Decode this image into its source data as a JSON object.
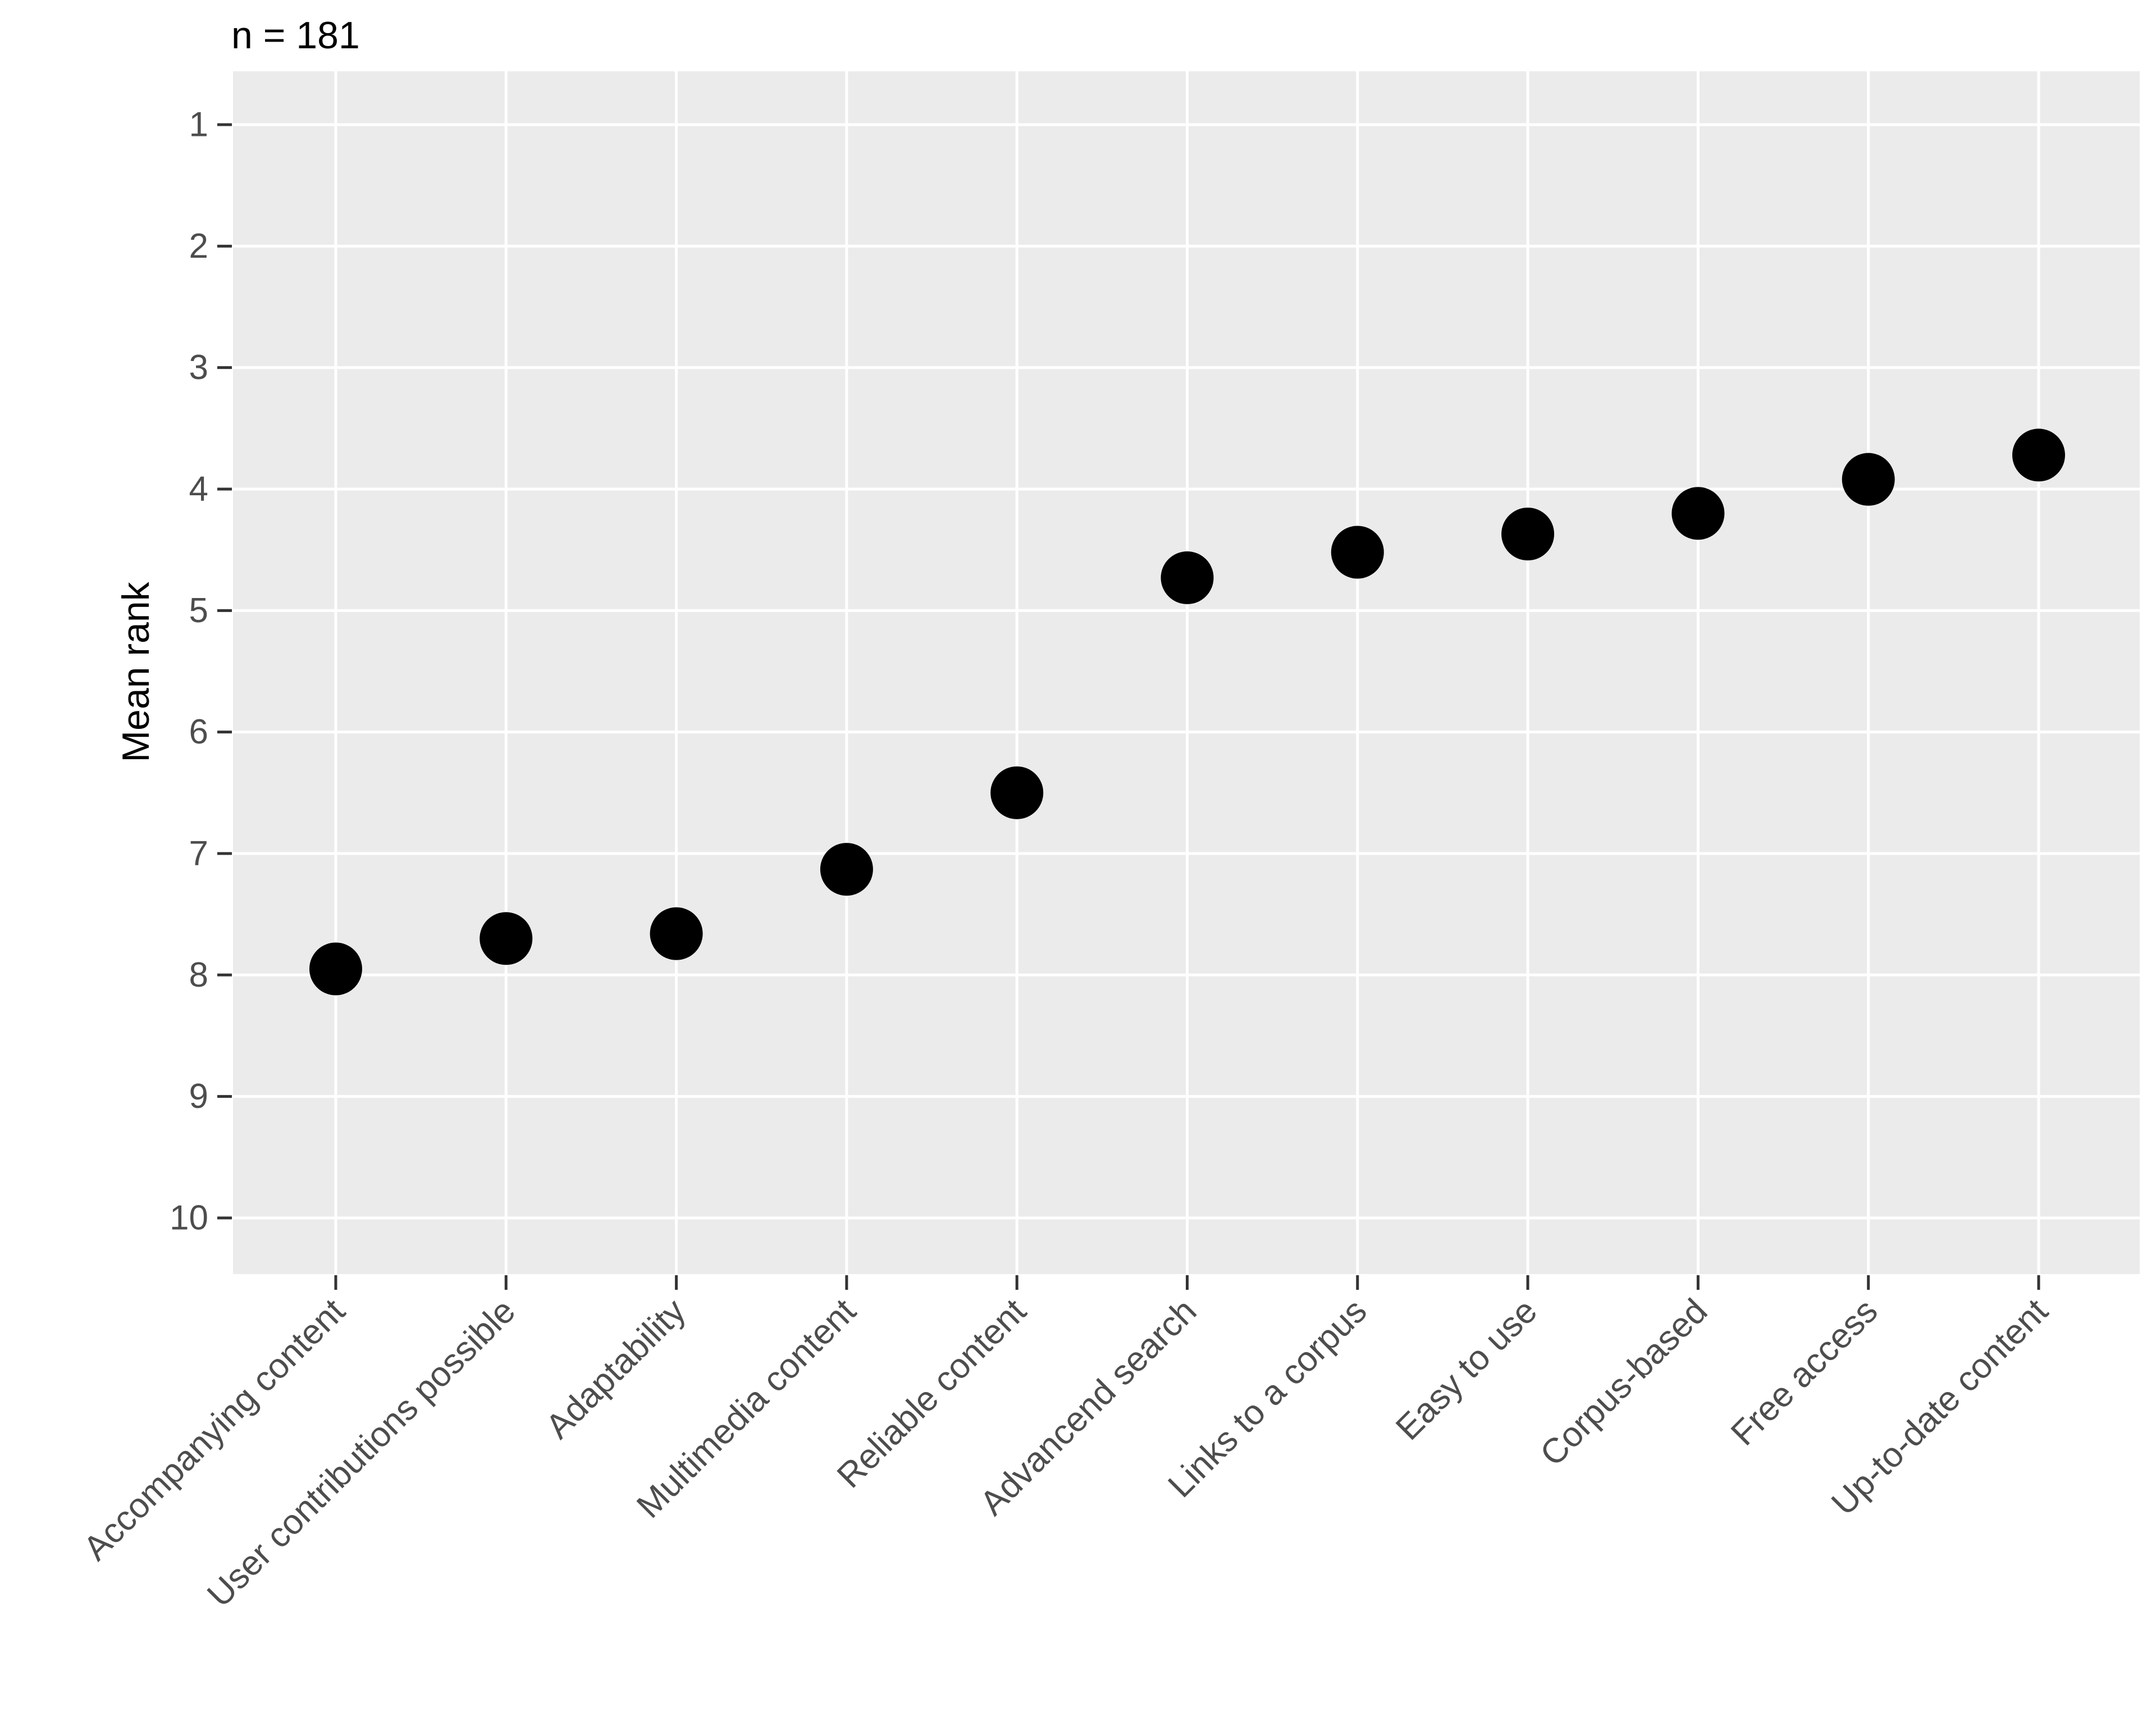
{
  "chart_data": {
    "type": "scatter",
    "title": "n = 181",
    "xlabel": "",
    "ylabel": "Mean rank",
    "categories": [
      "Accompanying content",
      "User contributions possible",
      "Adaptability",
      "Multimedia content",
      "Reliable content",
      "Advancend search",
      "Links to a corpus",
      "Easy to use",
      "Corpus-based",
      "Free access",
      "Up-to-date content"
    ],
    "values": [
      7.95,
      7.7,
      7.66,
      7.13,
      6.5,
      4.73,
      4.52,
      4.37,
      4.2,
      3.92,
      3.72
    ],
    "y_axis": {
      "ticks": [
        1,
        2,
        3,
        4,
        5,
        6,
        7,
        8,
        9,
        10
      ],
      "reversed": true,
      "min": 1,
      "max": 10,
      "expansion_units": 0.45
    },
    "x_axis": {
      "label_rotation_deg": 45
    },
    "grid": {
      "horizontal": "major-only",
      "vertical": "major-only",
      "minor": false
    },
    "legend": "none",
    "marker": {
      "shape": "circle",
      "color": "#000000",
      "radius_px": 47
    },
    "colors": {
      "background": "#FFFFFF",
      "panel_bg": "#EBEBEB",
      "grid": "#FFFFFF",
      "axis_text": "#4D4D4D",
      "tick_mark": "#333333",
      "title_text": "#000000"
    }
  }
}
